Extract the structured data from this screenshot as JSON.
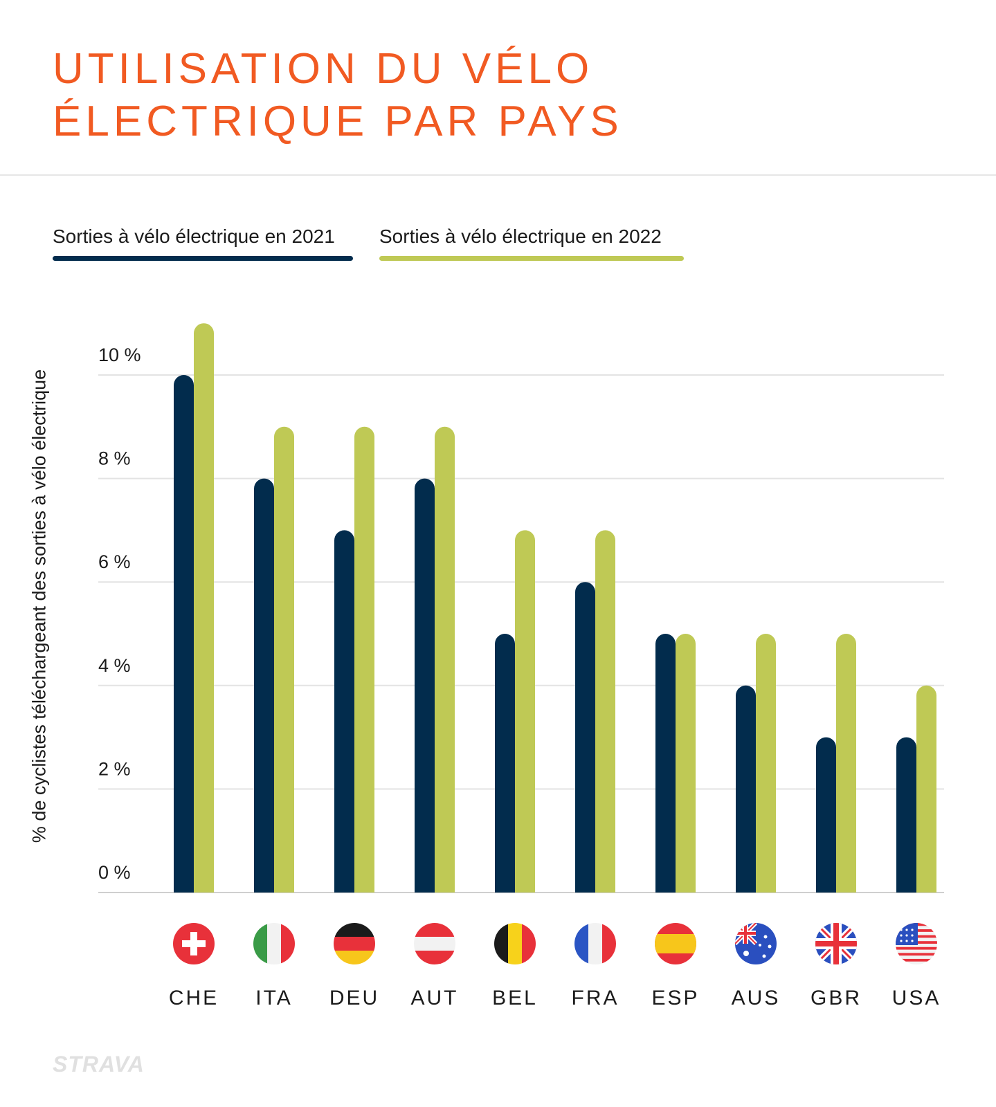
{
  "colors": {
    "title": "#f15a22",
    "series_2021": "#022c4d",
    "series_2022": "#bfc955",
    "grid": "#e3e3e3"
  },
  "title_lines": [
    "UTILISATION DU VÉLO",
    "ÉLECTRIQUE PAR PAYS"
  ],
  "logo": "STRAVA",
  "chart_data": {
    "type": "bar",
    "ylabel": "% de cyclistes téléchargeant des sorties à vélo électrique",
    "xlabel": "",
    "ylim": [
      0,
      10
    ],
    "yticks": [
      0,
      2,
      4,
      6,
      8,
      10
    ],
    "ytick_labels": [
      "0 %",
      "2 %",
      "4 %",
      "6 %",
      "8 %",
      "10 %"
    ],
    "grid": "horizontal",
    "legend_position": "top-left",
    "categories": [
      "CHE",
      "ITA",
      "DEU",
      "AUT",
      "BEL",
      "FRA",
      "ESP",
      "AUS",
      "GBR",
      "USA"
    ],
    "category_icons": [
      "flag-switzerland-icon",
      "flag-italy-icon",
      "flag-germany-icon",
      "flag-austria-icon",
      "flag-belgium-icon",
      "flag-france-icon",
      "flag-spain-icon",
      "flag-australia-icon",
      "flag-uk-icon",
      "flag-usa-icon"
    ],
    "series": [
      {
        "name": "Sorties à vélo électrique en 2021",
        "color": "#022c4d",
        "values": [
          10,
          8,
          7,
          8,
          5,
          6,
          5,
          4,
          3,
          3
        ]
      },
      {
        "name": "Sorties à vélo électrique en 2022",
        "color": "#bfc955",
        "values": [
          11,
          9,
          9,
          9,
          7,
          7,
          5,
          5,
          5,
          4
        ]
      }
    ]
  }
}
